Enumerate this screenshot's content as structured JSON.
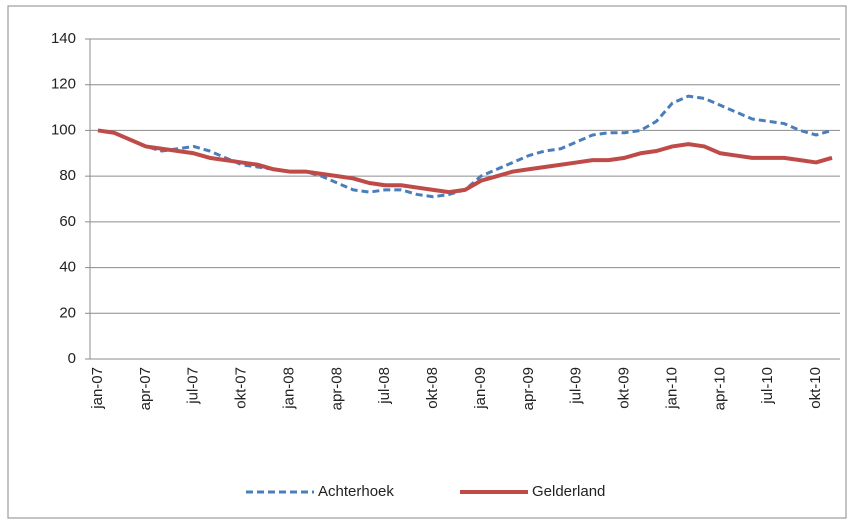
{
  "chart_data": {
    "type": "line",
    "categories": [
      "jan-07",
      null,
      null,
      "apr-07",
      null,
      null,
      "jul-07",
      null,
      null,
      "okt-07",
      null,
      null,
      "jan-08",
      null,
      null,
      "apr-08",
      null,
      null,
      "jul-08",
      null,
      null,
      "okt-08",
      null,
      null,
      "jan-09",
      null,
      null,
      "apr-09",
      null,
      null,
      "jul-09",
      null,
      null,
      "okt-09",
      null,
      null,
      "jan-10",
      null,
      null,
      "apr-10",
      null,
      null,
      "jul-10",
      null,
      null,
      "okt-10",
      null
    ],
    "series": [
      {
        "name": "Achterhoek",
        "color": "#4a7ebb",
        "dash": true,
        "values": [
          100,
          99,
          96,
          93,
          91,
          92,
          93,
          91,
          88,
          85,
          84,
          83,
          82,
          82,
          80,
          77,
          74,
          73,
          74,
          74,
          72,
          71,
          72,
          74,
          80,
          83,
          86,
          89,
          91,
          92,
          95,
          98,
          99,
          99,
          100,
          104,
          112,
          115,
          114,
          111,
          108,
          105,
          104,
          103,
          100,
          98,
          100
        ]
      },
      {
        "name": "Gelderland",
        "color": "#be4b48",
        "dash": false,
        "values": [
          100,
          99,
          96,
          93,
          92,
          91,
          90,
          88,
          87,
          86,
          85,
          83,
          82,
          82,
          81,
          80,
          79,
          77,
          76,
          76,
          75,
          74,
          73,
          74,
          78,
          80,
          82,
          83,
          84,
          85,
          86,
          87,
          87,
          88,
          90,
          91,
          93,
          94,
          93,
          90,
          89,
          88,
          88,
          88,
          87,
          86,
          88
        ]
      }
    ],
    "ylim": [
      0,
      140
    ],
    "yticks": [
      0,
      20,
      40,
      60,
      80,
      100,
      120,
      140
    ],
    "grid": true,
    "legend": "bottom"
  }
}
